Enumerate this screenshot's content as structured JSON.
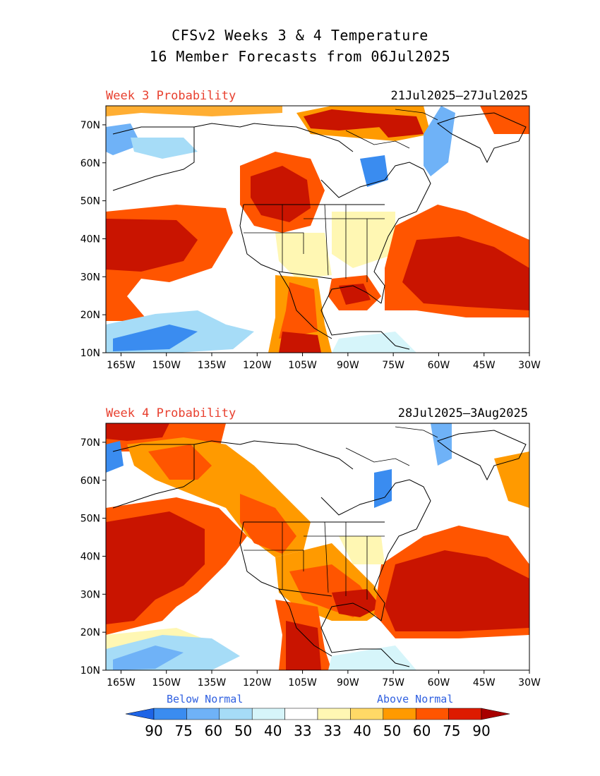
{
  "title": {
    "line1": "CFSv2 Weeks 3 & 4 Temperature",
    "line2": "16 Member Forecasts from 06Jul2025"
  },
  "panels": [
    {
      "label": "Week 3 Probability",
      "dates": "21Jul2025—27Jul2025"
    },
    {
      "label": "Week 4 Probability",
      "dates": "28Jul2025—3Aug2025"
    }
  ],
  "axes": {
    "lat_labels": [
      "70N",
      "60N",
      "50N",
      "40N",
      "30N",
      "20N",
      "10N"
    ],
    "lat_values": [
      70,
      60,
      50,
      40,
      30,
      20,
      10
    ],
    "lon_labels": [
      "165W",
      "150W",
      "135W",
      "120W",
      "105W",
      "90W",
      "75W",
      "60W",
      "45W",
      "30W"
    ],
    "lon_values": [
      -165,
      -150,
      -135,
      -120,
      -105,
      -90,
      -75,
      -60,
      -45,
      -30
    ],
    "lon_range": [
      -170,
      -30
    ],
    "lat_range": [
      10,
      75
    ]
  },
  "legend": {
    "below_label": "Below Normal",
    "above_label": "Above Normal",
    "ticks": [
      "90",
      "75",
      "60",
      "50",
      "40",
      "33",
      "33",
      "40",
      "50",
      "60",
      "75",
      "90"
    ],
    "colors": [
      "#1e64e6",
      "#3a8cf0",
      "#6fb2f7",
      "#a6dcf7",
      "#d6f5fa",
      "#ffffff",
      "#fff7b3",
      "#ffd966",
      "#ff9a00",
      "#ff5500",
      "#dd1a00",
      "#a80000"
    ]
  },
  "colors": {
    "ocean_warm": "#ff5500",
    "strong_warm": "#c91400",
    "cool": "#3a8cf0"
  }
}
